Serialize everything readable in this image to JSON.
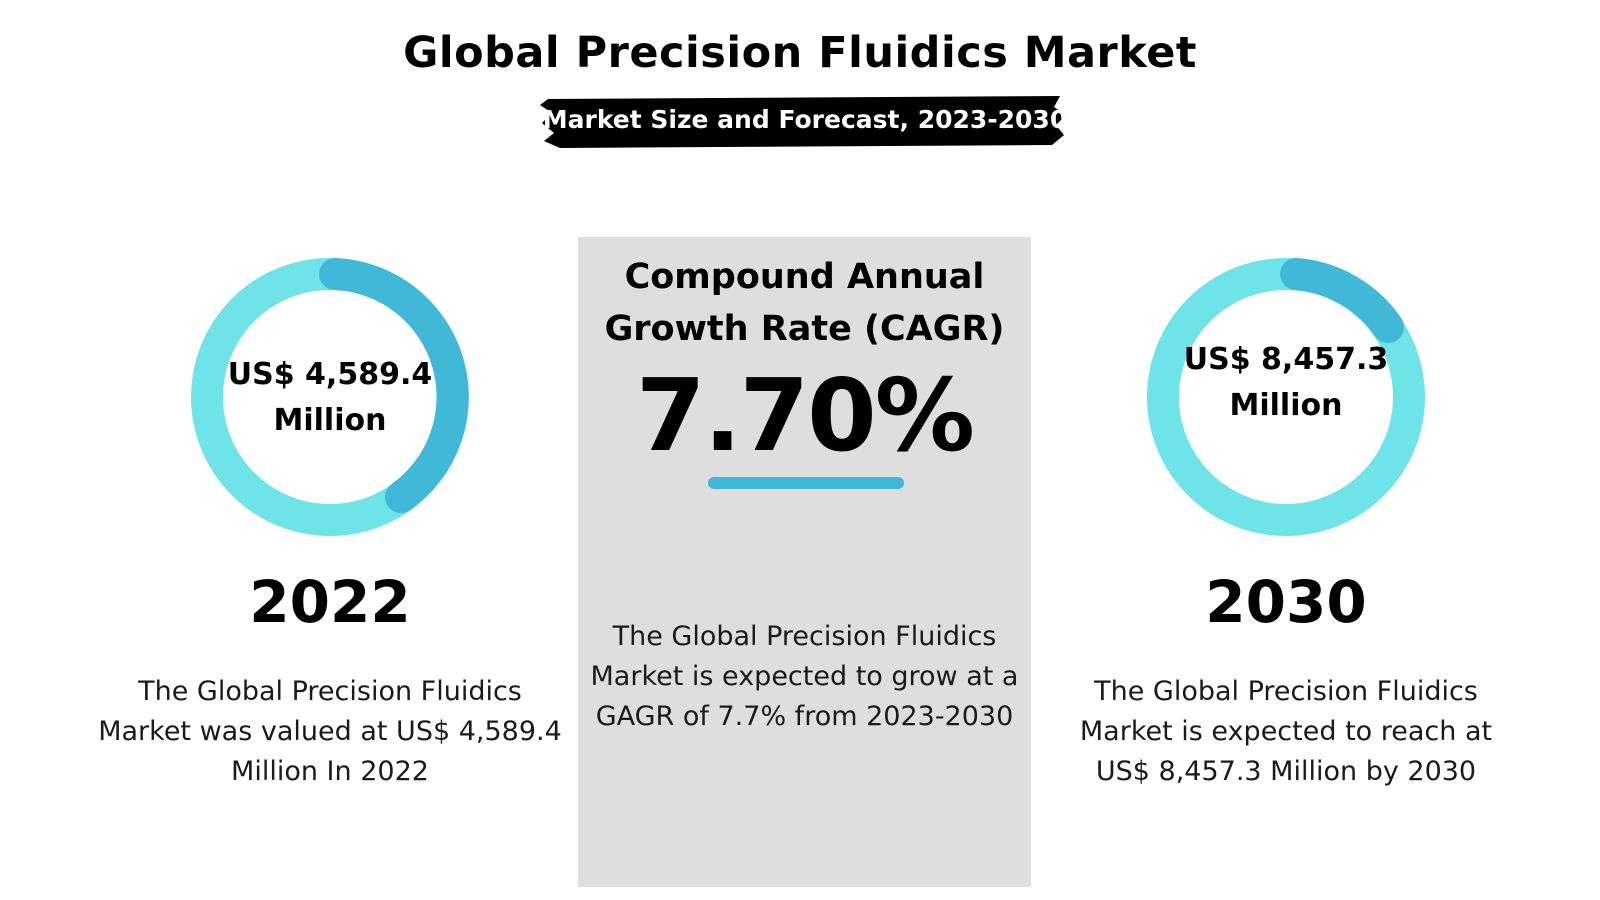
{
  "header": {
    "title": "Global Precision Fluidics Market",
    "subtitle": "Market Size and Forecast, 2023-2030"
  },
  "left": {
    "value_line1": "US$ 4,589.4",
    "value_line2": "Million",
    "year": "2022",
    "desc_lines": [
      "The Global Precision Fluidics",
      "Market was valued at US$ 4,589.4",
      "Million In 2022"
    ]
  },
  "center": {
    "heading_lines": [
      "Compound Annual",
      "Growth Rate (CAGR)"
    ],
    "value": "7.70%",
    "desc_lines": [
      "The Global Precision Fluidics",
      "Market is expected to grow at a",
      "GAGR of 7.7% from 2023-2030"
    ]
  },
  "right": {
    "value_line1": "US$ 8,457.3",
    "value_line2": "Million",
    "year": "2030",
    "desc_lines": [
      "The Global Precision Fluidics",
      "Market is expected to reach at",
      "US$ 8,457.3 Million by 2030"
    ]
  },
  "colors": {
    "ring_light": "#6ee3e8",
    "ring_dark": "#42b8d8",
    "panel": "#dedede",
    "underline": "#42b8d8",
    "subtitle_bg": "#000000"
  }
}
